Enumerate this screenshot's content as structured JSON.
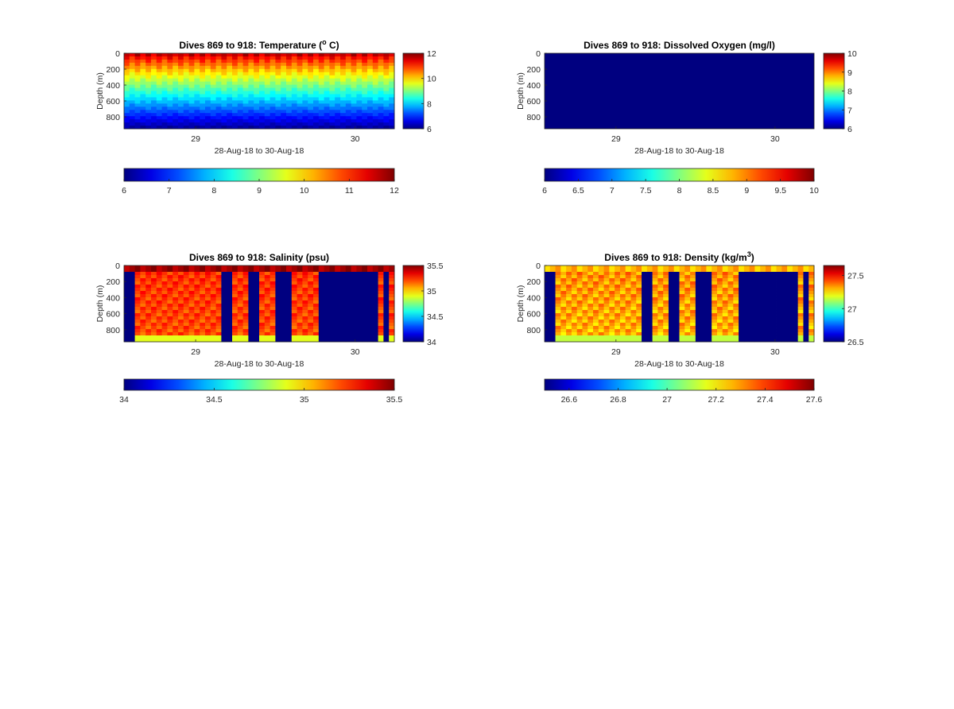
{
  "figure": {
    "background": "#ffffff",
    "colormap": "jet"
  },
  "chart_data": [
    {
      "type": "heatmap",
      "id": "temperature",
      "title": "Dives 869 to 918: Temperature (",
      "title_superscript": "o",
      "title_suffix": " C)",
      "xlabel": "28-Aug-18 to 30-Aug-18",
      "ylabel": "Depth (m)",
      "xticks": [
        "29",
        "30"
      ],
      "yticks": [
        "0",
        "200",
        "400",
        "600",
        "800"
      ],
      "ylim": [
        0,
        950
      ],
      "ydirection": "reverse",
      "clim": [
        6,
        12
      ],
      "colorbar_ticks": [
        "12",
        "10",
        "8",
        "6"
      ],
      "horizontal_colorbar_ticks": [
        "6",
        "7",
        "8",
        "9",
        "10",
        "11",
        "12"
      ],
      "dives": 50,
      "pattern": "stratified",
      "surface_value": 11.5,
      "deep_value": 6.2
    },
    {
      "type": "heatmap",
      "id": "oxygen",
      "title": "Dives 869 to 918: Dissolved Oxygen (mg/l)",
      "xlabel": "28-Aug-18 to 30-Aug-18",
      "ylabel": "Depth (m)",
      "xticks": [
        "29",
        "30"
      ],
      "yticks": [
        "0",
        "200",
        "400",
        "600",
        "800"
      ],
      "ylim": [
        0,
        950
      ],
      "ydirection": "reverse",
      "clim": [
        6,
        10
      ],
      "colorbar_ticks": [
        "10",
        "9",
        "8",
        "7",
        "6"
      ],
      "horizontal_colorbar_ticks": [
        "6",
        "6.5",
        "7",
        "7.5",
        "8",
        "8.5",
        "9",
        "9.5",
        "10"
      ],
      "pattern": "uniform",
      "uniform_value": 6
    },
    {
      "type": "heatmap",
      "id": "salinity",
      "title": "Dives 869 to 918: Salinity (psu)",
      "xlabel": "28-Aug-18 to 30-Aug-18",
      "ylabel": "Depth (m)",
      "xticks": [
        "29",
        "30"
      ],
      "yticks": [
        "0",
        "200",
        "400",
        "600",
        "800"
      ],
      "ylim": [
        0,
        950
      ],
      "ydirection": "reverse",
      "clim": [
        34,
        35.5
      ],
      "colorbar_ticks": [
        "35.5",
        "35",
        "34.5",
        "34"
      ],
      "horizontal_colorbar_ticks": [
        "34",
        "34.5",
        "35",
        "35.5"
      ],
      "dives": 50,
      "pattern": "columns",
      "surface_value": 35.45,
      "column_value": 35.25,
      "bottom_value": 34.9,
      "gap_value": 34,
      "gap_dives": [
        0,
        1,
        18,
        19,
        23,
        24,
        28,
        29,
        30,
        36,
        37,
        38,
        39,
        40,
        41,
        42,
        43,
        44,
        45,
        46,
        48
      ]
    },
    {
      "type": "heatmap",
      "id": "density",
      "title": "Dives 869 to 918: Density (kg/m",
      "title_superscript": "3",
      "title_suffix": ")",
      "xlabel": "28-Aug-18 to 30-Aug-18",
      "ylabel": "Depth (m)",
      "xticks": [
        "29",
        "30"
      ],
      "yticks": [
        "0",
        "200",
        "400",
        "600",
        "800"
      ],
      "ylim": [
        0,
        950
      ],
      "ydirection": "reverse",
      "clim": [
        26.5,
        27.65
      ],
      "colorbar_ticks": [
        "27.5",
        "27",
        "26.5"
      ],
      "horizontal_colorbar_ticks": [
        "26.6",
        "26.8",
        "27",
        "27.2",
        "27.4",
        "27.6"
      ],
      "horizontal_clim": [
        26.5,
        27.6
      ],
      "dives": 50,
      "pattern": "columns",
      "surface_value": 27.3,
      "column_value": 27.35,
      "bottom_value": 27.15,
      "gap_value": 26.5,
      "gap_dives": [
        0,
        1,
        18,
        19,
        23,
        24,
        28,
        29,
        30,
        36,
        37,
        38,
        39,
        40,
        41,
        42,
        43,
        44,
        45,
        46,
        48
      ]
    }
  ]
}
